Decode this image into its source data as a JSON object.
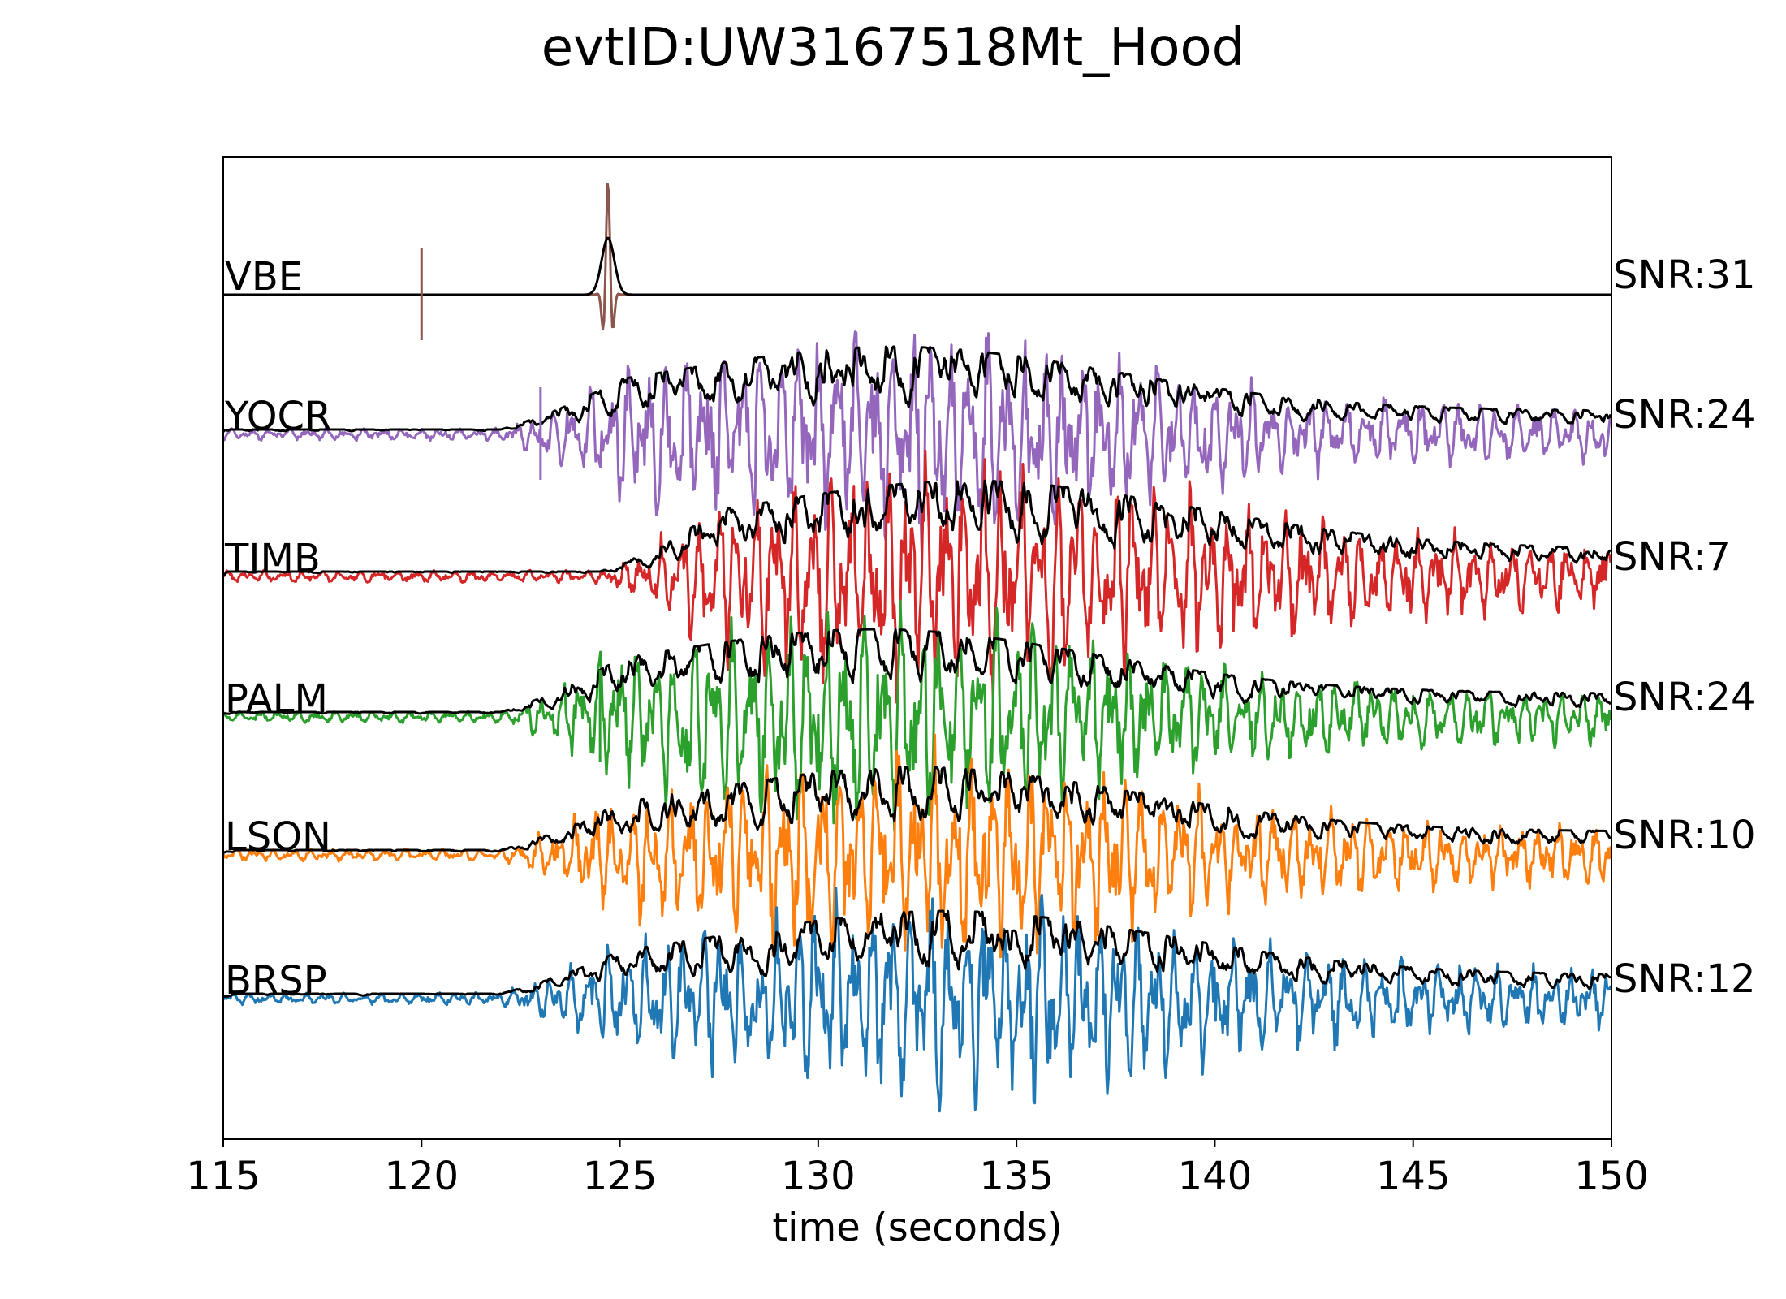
{
  "chart_data": {
    "type": "line",
    "title": "evtID:UW3167518Mt_Hood",
    "xlabel": "time (seconds)",
    "xlim": [
      115,
      150
    ],
    "xticks": [
      115,
      120,
      125,
      130,
      135,
      140,
      145,
      150
    ],
    "grid": false,
    "series": [
      {
        "name": "VBE",
        "snr": "SNR:31",
        "color": "#8c564b",
        "onset": 124.5,
        "peak": 124.7,
        "marker": 120.0
      },
      {
        "name": "YOCR",
        "snr": "SNR:24",
        "color": "#9467bd",
        "onset": 122.0,
        "peak": 132.0,
        "marker": 123.0
      },
      {
        "name": "TIMB",
        "snr": "SNR:7",
        "color": "#d62728",
        "onset": 124.5,
        "peak": 134.0,
        "marker": null
      },
      {
        "name": "PALM",
        "snr": "SNR:24",
        "color": "#2ca02c",
        "onset": 122.0,
        "peak": 131.5,
        "marker": 124.5
      },
      {
        "name": "LSON",
        "snr": "SNR:10",
        "color": "#ff7f0e",
        "onset": 122.0,
        "peak": 132.5,
        "marker": null
      },
      {
        "name": "BRSP",
        "snr": "SNR:12",
        "color": "#1f77b4",
        "onset": 122.0,
        "peak": 133.3,
        "marker": null
      }
    ]
  }
}
